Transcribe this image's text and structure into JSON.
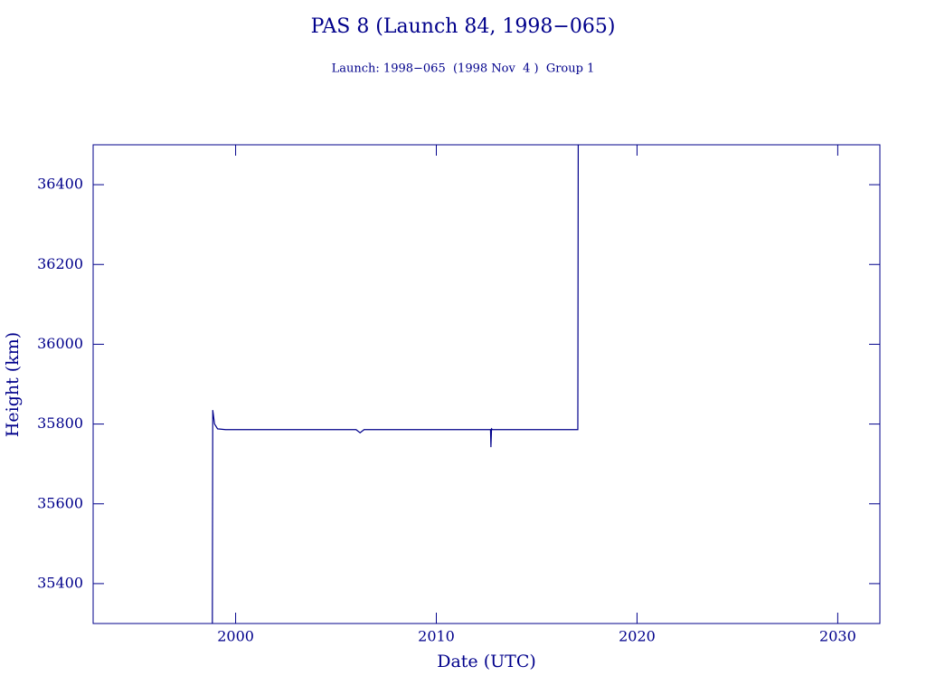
{
  "chart_data": {
    "type": "line",
    "title": "PAS 8 (Launch 84, 1998−065)",
    "subtitle": "Launch: 1998−065  (1998 Nov  4 )  Group 1",
    "x_label": "Date (UTC)",
    "y_label": "Height (km)",
    "color": "#00008b",
    "xlim": [
      1992.9,
      2032.1
    ],
    "ylim": [
      35300,
      36500
    ],
    "xticks": [
      2000,
      2010,
      2020,
      2030
    ],
    "yticks": [
      35400,
      35600,
      35800,
      36000,
      36200,
      36400
    ],
    "series": [
      {
        "name": "Height",
        "color": "#00008b",
        "x": [
          1998.84,
          1998.86,
          1998.95,
          1999.1,
          1999.5,
          2006.0,
          2006.2,
          2006.4,
          2012.7,
          2012.72,
          2012.75,
          2012.8,
          2017.05,
          2017.07
        ],
        "values": [
          35300,
          35835,
          35800,
          35788,
          35786,
          35786,
          35778,
          35786,
          35786,
          35742,
          35788,
          35786,
          35786,
          36500
        ]
      }
    ]
  }
}
